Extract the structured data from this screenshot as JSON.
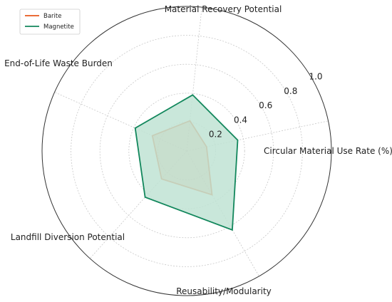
{
  "chart_data": {
    "type": "radar",
    "axes": [
      "Circular Material Use Rate (%)",
      "Material Recovery Potential",
      "End-of-Life Waste Burden",
      "Landfill Diversion Potential",
      "Reusability/Modularity"
    ],
    "rticks": [
      "0.2",
      "0.4",
      "0.6",
      "0.8",
      "1.0"
    ],
    "rtick_values": [
      0.2,
      0.4,
      0.6,
      0.8,
      1.0
    ],
    "rlim": [
      0,
      1.0
    ],
    "grid": true,
    "legend_position": "top-left",
    "series": [
      {
        "name": "Barite",
        "color": "#e8581c",
        "values": [
          0.14,
          0.21,
          0.26,
          0.26,
          0.35
        ]
      },
      {
        "name": "Magnetite",
        "color": "#12875c",
        "fill": "#bfe3d4",
        "values": [
          0.36,
          0.39,
          0.39,
          0.43,
          0.63
        ]
      }
    ]
  }
}
